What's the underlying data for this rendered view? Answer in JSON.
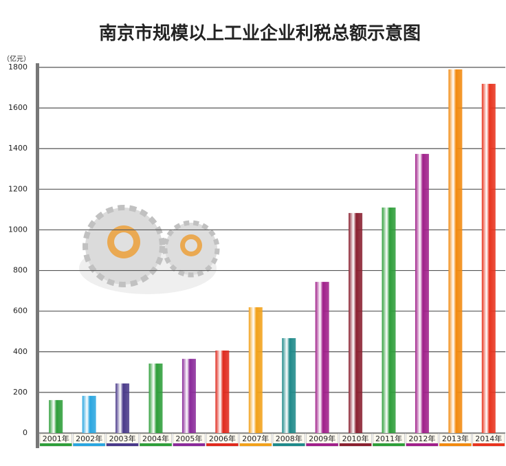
{
  "chart_data": {
    "type": "bar",
    "title": "南京市规模以上工业企业利税总额示意图",
    "unit_label": "（亿元）",
    "categories": [
      "2001年",
      "2002年",
      "2003年",
      "2004年",
      "2005年",
      "2006年",
      "2007年",
      "2008年",
      "2009年",
      "2010年",
      "2011年",
      "2012年",
      "2013年",
      "2014年"
    ],
    "values": [
      162,
      183,
      244,
      342,
      365,
      406,
      619,
      467,
      744,
      1083,
      1110,
      1374,
      1790,
      1719
    ],
    "colors": [
      "#2e9e3a",
      "#2aa6e0",
      "#4a3a8a",
      "#2e9e3a",
      "#8a2a9a",
      "#e02a1e",
      "#f2a11a",
      "#1f8a8a",
      "#a0208a",
      "#8a2030",
      "#2e9e3a",
      "#a0208a",
      "#f28a10",
      "#e8341e"
    ],
    "ylim": [
      0,
      1800
    ],
    "yticks": [
      0,
      200,
      400,
      600,
      800,
      1000,
      1200,
      1400,
      1600,
      1800
    ],
    "grid": true
  }
}
